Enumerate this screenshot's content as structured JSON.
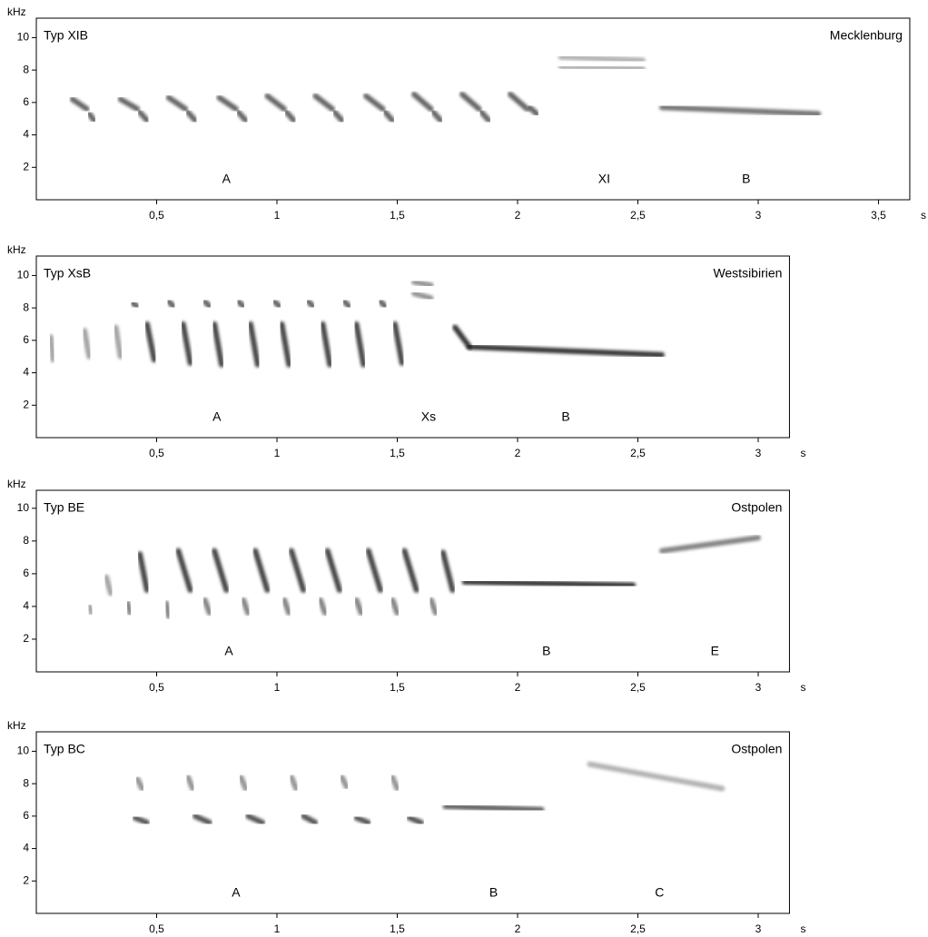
{
  "chart_data": [
    {
      "type": "spectrogram",
      "title": "Typ XIB",
      "location": "Mecklenburg",
      "ylabel": "kHz",
      "xlabel": "s",
      "xlim": [
        0,
        3.63
      ],
      "ylim": [
        0,
        11.2
      ],
      "xticks": [
        {
          "value": 0.5,
          "label": "0,5"
        },
        1,
        {
          "value": 1.5,
          "label": "1,5"
        },
        2,
        {
          "value": 2.5,
          "label": "2,5"
        },
        3,
        {
          "value": 3.5,
          "label": "3,5"
        }
      ],
      "yticks": [
        2,
        4,
        6,
        8,
        10
      ],
      "annotations": [
        {
          "text": "A",
          "x": 0.79
        },
        {
          "text": "XI",
          "x": 2.36
        },
        {
          "text": "B",
          "x": 2.95
        }
      ],
      "elements": [
        {
          "color": "#555",
          "segments": [
            [
              0.15,
              6.2,
              0.21,
              5.6
            ],
            [
              0.22,
              5.3,
              0.24,
              4.9
            ],
            [
              0.35,
              6.2,
              0.42,
              5.6
            ],
            [
              0.43,
              5.4,
              0.46,
              4.9
            ],
            [
              0.55,
              6.3,
              0.62,
              5.6
            ],
            [
              0.63,
              5.4,
              0.66,
              4.9
            ],
            [
              0.76,
              6.3,
              0.83,
              5.6
            ],
            [
              0.84,
              5.4,
              0.87,
              4.9
            ],
            [
              0.96,
              6.4,
              1.03,
              5.6
            ],
            [
              1.04,
              5.4,
              1.07,
              4.9
            ],
            [
              1.16,
              6.4,
              1.23,
              5.6
            ],
            [
              1.24,
              5.4,
              1.27,
              4.9
            ],
            [
              1.37,
              6.4,
              1.44,
              5.6
            ],
            [
              1.45,
              5.4,
              1.48,
              4.9
            ],
            [
              1.57,
              6.5,
              1.64,
              5.6
            ],
            [
              1.65,
              5.4,
              1.68,
              4.9
            ],
            [
              1.77,
              6.5,
              1.84,
              5.6
            ],
            [
              1.85,
              5.4,
              1.88,
              4.9
            ],
            [
              1.97,
              6.5,
              2.04,
              5.6
            ],
            [
              2.05,
              5.7,
              2.08,
              5.3
            ]
          ]
        },
        {
          "color": "#aaa",
          "segments": [
            [
              2.18,
              8.8,
              2.52,
              8.6
            ],
            [
              2.18,
              8.2,
              2.52,
              8.1
            ]
          ]
        },
        {
          "color": "#666",
          "segments": [
            [
              2.6,
              5.7,
              3.25,
              5.3
            ]
          ]
        }
      ]
    },
    {
      "type": "spectrogram",
      "title": "Typ XsB",
      "location": "Westsibirien",
      "ylabel": "kHz",
      "xlabel": "s",
      "xlim": [
        0,
        3.13
      ],
      "ylim": [
        0,
        11.2
      ],
      "xticks": [
        {
          "value": 0.5,
          "label": "0,5"
        },
        1,
        {
          "value": 1.5,
          "label": "1,5"
        },
        2,
        {
          "value": 2.5,
          "label": "2,5"
        },
        3
      ],
      "yticks": [
        2,
        4,
        6,
        8,
        10
      ],
      "annotations": [
        {
          "text": "A",
          "x": 0.75
        },
        {
          "text": "Xs",
          "x": 1.63
        },
        {
          "text": "B",
          "x": 2.2
        }
      ],
      "elements": [
        {
          "color": "#999",
          "segments": [
            [
              0.06,
              6.2,
              0.07,
              4.8
            ],
            [
              0.2,
              6.6,
              0.22,
              5.0
            ],
            [
              0.33,
              6.8,
              0.35,
              5.0
            ]
          ]
        },
        {
          "color": "#333",
          "segments": [
            [
              0.46,
              7.0,
              0.49,
              4.8
            ],
            [
              0.61,
              7.0,
              0.64,
              4.6
            ],
            [
              0.74,
              7.0,
              0.77,
              4.5
            ],
            [
              0.89,
              7.0,
              0.92,
              4.5
            ],
            [
              1.02,
              7.0,
              1.05,
              4.5
            ],
            [
              1.19,
              7.0,
              1.22,
              4.5
            ],
            [
              1.33,
              7.0,
              1.36,
              4.5
            ],
            [
              1.49,
              7.0,
              1.52,
              4.6
            ]
          ]
        },
        {
          "color": "#555",
          "segments": [
            [
              0.4,
              8.3,
              0.42,
              8.1
            ],
            [
              0.55,
              8.4,
              0.57,
              8.1
            ],
            [
              0.7,
              8.4,
              0.72,
              8.1
            ],
            [
              0.84,
              8.4,
              0.86,
              8.1
            ],
            [
              0.99,
              8.4,
              1.01,
              8.1
            ],
            [
              1.13,
              8.4,
              1.15,
              8.1
            ],
            [
              1.28,
              8.4,
              1.3,
              8.1
            ],
            [
              1.43,
              8.4,
              1.45,
              8.1
            ]
          ]
        },
        {
          "color": "#888",
          "segments": [
            [
              1.57,
              9.6,
              1.64,
              9.4
            ],
            [
              1.57,
              8.9,
              1.64,
              8.6
            ]
          ]
        },
        {
          "color": "#222",
          "segments": [
            [
              1.74,
              6.8,
              1.8,
              5.6
            ],
            [
              1.8,
              5.6,
              2.6,
              5.1
            ]
          ]
        }
      ]
    },
    {
      "type": "spectrogram",
      "title": "Typ BE",
      "location": "Ostpolen",
      "ylabel": "kHz",
      "xlabel": "s",
      "xlim": [
        0,
        3.13
      ],
      "ylim": [
        0,
        11.1
      ],
      "xticks": [
        {
          "value": 0.5,
          "label": "0,5"
        },
        1,
        {
          "value": 1.5,
          "label": "1,5"
        },
        2,
        {
          "value": 2.5,
          "label": "2,5"
        },
        3
      ],
      "yticks": [
        2,
        4,
        6,
        8,
        10
      ],
      "annotations": [
        {
          "text": "A",
          "x": 0.8
        },
        {
          "text": "B",
          "x": 2.12
        },
        {
          "text": "E",
          "x": 2.82
        }
      ],
      "elements": [
        {
          "color": "#999",
          "segments": [
            [
              0.29,
              5.8,
              0.31,
              4.8
            ],
            [
              0.22,
              4.0,
              0.23,
              3.6
            ]
          ]
        },
        {
          "color": "#333",
          "segments": [
            [
              0.43,
              7.2,
              0.46,
              5.0
            ],
            [
              0.59,
              7.4,
              0.64,
              5.0
            ],
            [
              0.74,
              7.4,
              0.79,
              5.0
            ],
            [
              0.91,
              7.4,
              0.96,
              5.0
            ],
            [
              1.06,
              7.4,
              1.11,
              5.0
            ],
            [
              1.21,
              7.4,
              1.26,
              5.0
            ],
            [
              1.38,
              7.4,
              1.43,
              5.0
            ],
            [
              1.53,
              7.4,
              1.58,
              5.0
            ],
            [
              1.69,
              7.3,
              1.73,
              5.0
            ]
          ]
        },
        {
          "color": "#777",
          "segments": [
            [
              0.38,
              4.2,
              0.39,
              3.6
            ],
            [
              0.54,
              4.2,
              0.55,
              3.4
            ],
            [
              0.7,
              4.4,
              0.72,
              3.6
            ],
            [
              0.86,
              4.4,
              0.88,
              3.6
            ],
            [
              1.03,
              4.4,
              1.05,
              3.6
            ],
            [
              1.18,
              4.4,
              1.2,
              3.6
            ],
            [
              1.33,
              4.4,
              1.35,
              3.6
            ],
            [
              1.48,
              4.4,
              1.5,
              3.6
            ],
            [
              1.64,
              4.4,
              1.66,
              3.6
            ]
          ]
        },
        {
          "color": "#222",
          "segments": [
            [
              1.78,
              5.5,
              2.48,
              5.3
            ]
          ]
        },
        {
          "color": "#777",
          "segments": [
            [
              2.6,
              7.4,
              3.0,
              8.2
            ]
          ]
        }
      ]
    },
    {
      "type": "spectrogram",
      "title": "Typ BC",
      "location": "Ostpolen",
      "ylabel": "kHz",
      "xlabel": "s",
      "xlim": [
        0,
        3.13
      ],
      "ylim": [
        0,
        11.2
      ],
      "xticks": [
        {
          "value": 0.5,
          "label": "0,5"
        },
        1,
        {
          "value": 1.5,
          "label": "1,5"
        },
        2,
        {
          "value": 2.5,
          "label": "2,5"
        },
        3
      ],
      "yticks": [
        2,
        4,
        6,
        8,
        10
      ],
      "annotations": [
        {
          "text": "A",
          "x": 0.83
        },
        {
          "text": "B",
          "x": 1.9
        },
        {
          "text": "C",
          "x": 2.59
        }
      ],
      "elements": [
        {
          "color": "#888",
          "segments": [
            [
              0.42,
              8.3,
              0.44,
              7.7
            ],
            [
              0.63,
              8.4,
              0.65,
              7.7
            ],
            [
              0.85,
              8.4,
              0.87,
              7.7
            ],
            [
              1.06,
              8.4,
              1.08,
              7.7
            ],
            [
              1.27,
              8.4,
              1.29,
              7.8
            ],
            [
              1.48,
              8.4,
              1.5,
              7.7
            ]
          ]
        },
        {
          "color": "#444",
          "segments": [
            [
              0.41,
              5.9,
              0.46,
              5.6
            ],
            [
              0.66,
              6.0,
              0.72,
              5.6
            ],
            [
              0.88,
              6.0,
              0.94,
              5.6
            ],
            [
              1.11,
              6.0,
              1.16,
              5.6
            ],
            [
              1.33,
              5.9,
              1.38,
              5.6
            ],
            [
              1.55,
              5.9,
              1.6,
              5.6
            ]
          ]
        },
        {
          "color": "#555",
          "segments": [
            [
              1.7,
              6.6,
              2.1,
              6.4
            ]
          ]
        },
        {
          "color": "#aaa",
          "segments": [
            [
              2.3,
              9.2,
              2.85,
              7.7
            ]
          ]
        }
      ]
    }
  ]
}
